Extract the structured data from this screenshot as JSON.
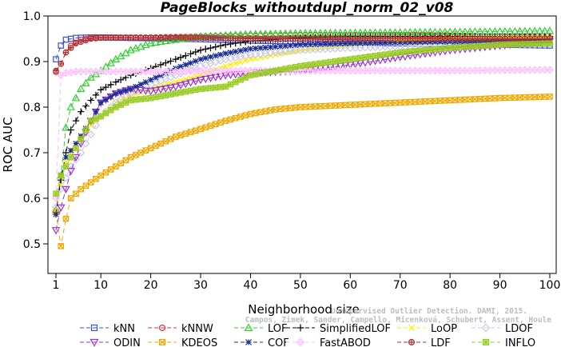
{
  "chart_data": {
    "type": "line",
    "title": "PageBlocks_withoutdupl_norm_02_v08",
    "xlabel": "Neighborhood size",
    "ylabel": "ROC AUC",
    "xlim": [
      1,
      100
    ],
    "ylim": [
      0.45,
      1.0
    ],
    "xticks": [
      1,
      10,
      20,
      30,
      40,
      50,
      60,
      70,
      80,
      90,
      100
    ],
    "yticks": [
      0.5,
      0.6,
      0.7,
      0.8,
      0.9,
      1.0
    ],
    "ytick_labels": [
      "0.5",
      "0.6",
      "0.7",
      "0.8",
      "0.9",
      "1.0"
    ],
    "grid": false,
    "legend_position": "bottom",
    "watermark": [
      "Campos, Zimek, Sander, Campello, Micenková, Schubert, Assent, Houle",
      "Unsupervised Outlier Detection. DAMI, 2015."
    ],
    "series": [
      {
        "name": "kNN",
        "color": "#3a50d8",
        "marker": "square",
        "dash": "6,4",
        "points": [
          [
            1,
            0.905
          ],
          [
            2,
            0.935
          ],
          [
            3,
            0.948
          ],
          [
            5,
            0.952
          ],
          [
            8,
            0.953
          ],
          [
            10,
            0.953
          ],
          [
            20,
            0.951
          ],
          [
            30,
            0.949
          ],
          [
            40,
            0.946
          ],
          [
            50,
            0.944
          ],
          [
            60,
            0.942
          ],
          [
            70,
            0.94
          ],
          [
            80,
            0.938
          ],
          [
            90,
            0.937
          ],
          [
            100,
            0.935
          ]
        ]
      },
      {
        "name": "kNNW",
        "color": "#e0303a",
        "marker": "circle",
        "dash": "6,4",
        "points": [
          [
            1,
            0.877
          ],
          [
            2,
            0.895
          ],
          [
            3,
            0.92
          ],
          [
            4,
            0.935
          ],
          [
            6,
            0.948
          ],
          [
            8,
            0.952
          ],
          [
            10,
            0.953
          ],
          [
            20,
            0.953
          ],
          [
            30,
            0.955
          ],
          [
            40,
            0.957
          ],
          [
            50,
            0.958
          ],
          [
            60,
            0.958
          ],
          [
            70,
            0.958
          ],
          [
            80,
            0.957
          ],
          [
            90,
            0.955
          ],
          [
            100,
            0.953
          ]
        ]
      },
      {
        "name": "LOF",
        "color": "#2fd12f",
        "marker": "triangle",
        "dash": "6,4",
        "points": [
          [
            1,
            0.575
          ],
          [
            2,
            0.65
          ],
          [
            3,
            0.755
          ],
          [
            4,
            0.8
          ],
          [
            6,
            0.84
          ],
          [
            8,
            0.865
          ],
          [
            10,
            0.88
          ],
          [
            13,
            0.905
          ],
          [
            16,
            0.925
          ],
          [
            20,
            0.94
          ],
          [
            25,
            0.948
          ],
          [
            30,
            0.955
          ],
          [
            40,
            0.96
          ],
          [
            50,
            0.962
          ],
          [
            60,
            0.963
          ],
          [
            70,
            0.964
          ],
          [
            80,
            0.965
          ],
          [
            90,
            0.966
          ],
          [
            100,
            0.967
          ]
        ]
      },
      {
        "name": "SimplifiedLOF",
        "color": "#000000",
        "marker": "plus",
        "dash": "6,4",
        "points": [
          [
            1,
            0.565
          ],
          [
            2,
            0.64
          ],
          [
            3,
            0.7
          ],
          [
            4,
            0.75
          ],
          [
            6,
            0.79
          ],
          [
            8,
            0.815
          ],
          [
            10,
            0.838
          ],
          [
            13,
            0.855
          ],
          [
            16,
            0.87
          ],
          [
            20,
            0.885
          ],
          [
            25,
            0.905
          ],
          [
            30,
            0.925
          ],
          [
            35,
            0.937
          ],
          [
            40,
            0.945
          ],
          [
            50,
            0.952
          ],
          [
            60,
            0.955
          ],
          [
            70,
            0.955
          ],
          [
            80,
            0.955
          ],
          [
            90,
            0.955
          ],
          [
            100,
            0.955
          ]
        ]
      },
      {
        "name": "LoOP",
        "color": "#ffeb00",
        "marker": "x",
        "dash": "6,4",
        "points": [
          [
            1,
            0.57
          ],
          [
            2,
            0.63
          ],
          [
            3,
            0.68
          ],
          [
            5,
            0.72
          ],
          [
            8,
            0.76
          ],
          [
            10,
            0.78
          ],
          [
            13,
            0.81
          ],
          [
            16,
            0.825
          ],
          [
            20,
            0.84
          ],
          [
            25,
            0.855
          ],
          [
            30,
            0.87
          ],
          [
            35,
            0.89
          ],
          [
            40,
            0.905
          ],
          [
            50,
            0.925
          ],
          [
            60,
            0.935
          ],
          [
            70,
            0.945
          ],
          [
            80,
            0.948
          ],
          [
            90,
            0.95
          ],
          [
            100,
            0.952
          ]
        ]
      },
      {
        "name": "LDOF",
        "color": "#c8c8f0",
        "marker": "diamond",
        "dash": "6,4",
        "points": [
          [
            1,
            0.58
          ],
          [
            2,
            0.62
          ],
          [
            4,
            0.67
          ],
          [
            6,
            0.7
          ],
          [
            8,
            0.74
          ],
          [
            10,
            0.78
          ],
          [
            13,
            0.81
          ],
          [
            16,
            0.83
          ],
          [
            20,
            0.85
          ],
          [
            25,
            0.87
          ],
          [
            30,
            0.89
          ],
          [
            35,
            0.905
          ],
          [
            40,
            0.915
          ],
          [
            50,
            0.925
          ],
          [
            60,
            0.93
          ],
          [
            70,
            0.933
          ],
          [
            80,
            0.935
          ],
          [
            90,
            0.937
          ],
          [
            100,
            0.938
          ]
        ]
      },
      {
        "name": "ODIN",
        "color": "#9b30d8",
        "marker": "triangle-down",
        "dash": "6,4",
        "points": [
          [
            1,
            0.53
          ],
          [
            2,
            0.58
          ],
          [
            4,
            0.66
          ],
          [
            6,
            0.72
          ],
          [
            8,
            0.77
          ],
          [
            10,
            0.81
          ],
          [
            13,
            0.83
          ],
          [
            16,
            0.84
          ],
          [
            20,
            0.835
          ],
          [
            25,
            0.845
          ],
          [
            30,
            0.86
          ],
          [
            35,
            0.87
          ],
          [
            40,
            0.875
          ],
          [
            50,
            0.88
          ],
          [
            60,
            0.893
          ],
          [
            70,
            0.91
          ],
          [
            80,
            0.925
          ],
          [
            90,
            0.935
          ],
          [
            100,
            0.945
          ]
        ]
      },
      {
        "name": "KDEOS",
        "color": "#f0a800",
        "marker": "square-x",
        "dash": "6,4",
        "points": [
          [
            1,
            0.57
          ],
          [
            2,
            0.495
          ],
          [
            3,
            0.555
          ],
          [
            4,
            0.6
          ],
          [
            6,
            0.62
          ],
          [
            8,
            0.635
          ],
          [
            10,
            0.65
          ],
          [
            13,
            0.67
          ],
          [
            16,
            0.69
          ],
          [
            20,
            0.71
          ],
          [
            25,
            0.735
          ],
          [
            30,
            0.752
          ],
          [
            35,
            0.77
          ],
          [
            40,
            0.785
          ],
          [
            45,
            0.795
          ],
          [
            50,
            0.8
          ],
          [
            60,
            0.805
          ],
          [
            70,
            0.81
          ],
          [
            80,
            0.815
          ],
          [
            90,
            0.82
          ],
          [
            100,
            0.823
          ]
        ]
      },
      {
        "name": "COF",
        "color": "#1a2c90",
        "marker": "star",
        "dash": "6,4",
        "points": [
          [
            1,
            0.565
          ],
          [
            2,
            0.65
          ],
          [
            3,
            0.69
          ],
          [
            5,
            0.72
          ],
          [
            8,
            0.77
          ],
          [
            10,
            0.81
          ],
          [
            13,
            0.83
          ],
          [
            16,
            0.84
          ],
          [
            20,
            0.86
          ],
          [
            25,
            0.885
          ],
          [
            30,
            0.905
          ],
          [
            35,
            0.918
          ],
          [
            40,
            0.928
          ],
          [
            50,
            0.937
          ],
          [
            60,
            0.94
          ],
          [
            70,
            0.942
          ],
          [
            80,
            0.944
          ],
          [
            90,
            0.945
          ],
          [
            100,
            0.946
          ]
        ]
      },
      {
        "name": "FastABOD",
        "color": "#ffc0ff",
        "marker": "diamond-plus",
        "dash": "6,4",
        "points": [
          [
            1,
            0.6
          ],
          [
            2,
            0.87
          ],
          [
            3,
            0.875
          ],
          [
            5,
            0.878
          ],
          [
            8,
            0.878
          ],
          [
            10,
            0.878
          ],
          [
            20,
            0.878
          ],
          [
            30,
            0.879
          ],
          [
            40,
            0.88
          ],
          [
            50,
            0.88
          ],
          [
            60,
            0.88
          ],
          [
            70,
            0.88
          ],
          [
            80,
            0.88
          ],
          [
            90,
            0.881
          ],
          [
            100,
            0.882
          ]
        ]
      },
      {
        "name": "LDF",
        "color": "#b03030",
        "marker": "circle-plus",
        "dash": "6,4",
        "points": [
          [
            1,
            0.88
          ],
          [
            2,
            0.895
          ],
          [
            3,
            0.92
          ],
          [
            5,
            0.94
          ],
          [
            8,
            0.95
          ],
          [
            10,
            0.952
          ],
          [
            20,
            0.952
          ],
          [
            30,
            0.952
          ],
          [
            40,
            0.95
          ],
          [
            50,
            0.95
          ],
          [
            60,
            0.95
          ],
          [
            70,
            0.95
          ],
          [
            80,
            0.95
          ],
          [
            90,
            0.95
          ],
          [
            100,
            0.95
          ]
        ]
      },
      {
        "name": "INFLO",
        "color": "#99cc22",
        "marker": "square-star",
        "dash": "6,4",
        "points": [
          [
            1,
            0.61
          ],
          [
            2,
            0.65
          ],
          [
            4,
            0.69
          ],
          [
            6,
            0.73
          ],
          [
            8,
            0.77
          ],
          [
            10,
            0.78
          ],
          [
            13,
            0.8
          ],
          [
            16,
            0.815
          ],
          [
            20,
            0.82
          ],
          [
            25,
            0.83
          ],
          [
            30,
            0.84
          ],
          [
            35,
            0.845
          ],
          [
            40,
            0.87
          ],
          [
            50,
            0.89
          ],
          [
            60,
            0.905
          ],
          [
            70,
            0.92
          ],
          [
            80,
            0.93
          ],
          [
            90,
            0.937
          ],
          [
            100,
            0.94
          ]
        ]
      }
    ]
  }
}
